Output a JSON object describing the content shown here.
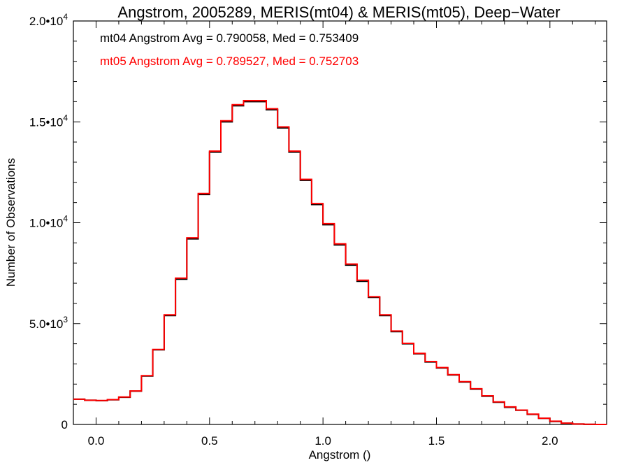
{
  "chart_data": {
    "type": "line",
    "step": true,
    "title": "Angstrom, 2005289, MERIS(mt04) & MERIS(mt05), Deep−Water",
    "xlabel": "Angstrom ()",
    "ylabel": "Number of Observations",
    "xlim": [
      -0.1,
      2.25
    ],
    "ylim": [
      0,
      20000
    ],
    "xticks": [
      0.0,
      0.5,
      1.0,
      1.5,
      2.0
    ],
    "xtick_labels": [
      "0.0",
      "0.5",
      "1.0",
      "1.5",
      "2.0"
    ],
    "yticks": [
      {
        "value": 0,
        "mantissa": "0",
        "exp": ""
      },
      {
        "value": 5000,
        "mantissa": "5.0•10",
        "exp": "3"
      },
      {
        "value": 10000,
        "mantissa": "1.0•10",
        "exp": "4"
      },
      {
        "value": 15000,
        "mantissa": "1.5•10",
        "exp": "4"
      },
      {
        "value": 20000,
        "mantissa": "2.0•10",
        "exp": "4"
      }
    ],
    "grid": false,
    "legend_position": "top-left",
    "series": [
      {
        "name": "mt04",
        "color": "#000000",
        "annotation": "mt04 Angstrom Avg = 0.790058, Med = 0.753409",
        "x": [
          -0.1,
          -0.05,
          0.0,
          0.05,
          0.1,
          0.15,
          0.2,
          0.25,
          0.3,
          0.35,
          0.4,
          0.45,
          0.5,
          0.55,
          0.6,
          0.65,
          0.7,
          0.75,
          0.8,
          0.85,
          0.9,
          0.95,
          1.0,
          1.05,
          1.1,
          1.15,
          1.2,
          1.25,
          1.3,
          1.35,
          1.4,
          1.45,
          1.5,
          1.55,
          1.6,
          1.65,
          1.7,
          1.75,
          1.8,
          1.85,
          1.9,
          1.95,
          2.0,
          2.05,
          2.1,
          2.15,
          2.2,
          2.25
        ],
        "y": [
          1250,
          1200,
          1180,
          1220,
          1350,
          1650,
          2400,
          3700,
          5400,
          7200,
          9200,
          11400,
          13500,
          15000,
          15800,
          16000,
          16000,
          15600,
          14700,
          13500,
          12100,
          10900,
          9900,
          8900,
          7900,
          7100,
          6300,
          5400,
          4600,
          4000,
          3500,
          3100,
          2800,
          2450,
          2100,
          1750,
          1400,
          1100,
          850,
          700,
          500,
          300,
          150,
          60,
          20,
          5,
          0,
          0
        ]
      },
      {
        "name": "mt05",
        "color": "#ff0000",
        "annotation": "mt05 Angstrom Avg = 0.789527, Med = 0.752703",
        "x": [
          -0.1,
          -0.05,
          0.0,
          0.05,
          0.1,
          0.15,
          0.2,
          0.25,
          0.3,
          0.35,
          0.4,
          0.45,
          0.5,
          0.55,
          0.6,
          0.65,
          0.7,
          0.75,
          0.8,
          0.85,
          0.9,
          0.95,
          1.0,
          1.05,
          1.1,
          1.15,
          1.2,
          1.25,
          1.3,
          1.35,
          1.4,
          1.45,
          1.5,
          1.55,
          1.6,
          1.65,
          1.7,
          1.75,
          1.8,
          1.85,
          1.9,
          1.95,
          2.0,
          2.05,
          2.1,
          2.15,
          2.2,
          2.25
        ],
        "y": [
          1250,
          1200,
          1190,
          1230,
          1360,
          1660,
          2420,
          3720,
          5430,
          7250,
          9250,
          11450,
          13550,
          15050,
          15850,
          16050,
          16050,
          15650,
          14750,
          13550,
          12150,
          10950,
          9950,
          8950,
          7950,
          7150,
          6330,
          5430,
          4630,
          4020,
          3520,
          3120,
          2820,
          2470,
          2120,
          1770,
          1420,
          1120,
          870,
          710,
          510,
          310,
          160,
          65,
          22,
          6,
          0,
          0
        ]
      }
    ]
  }
}
